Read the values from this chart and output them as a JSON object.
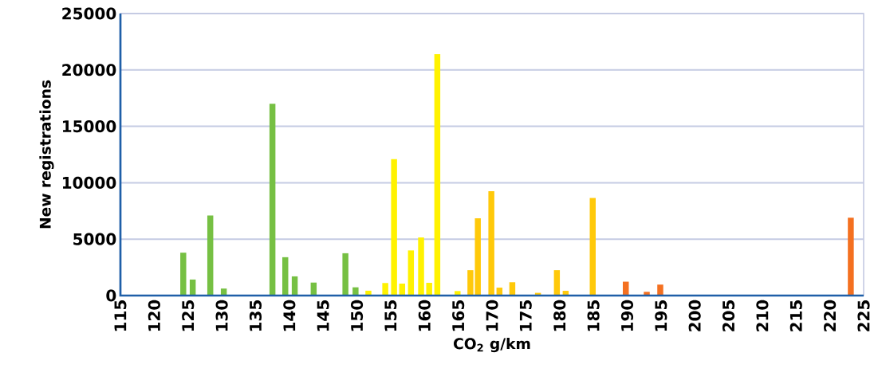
{
  "chart_data": {
    "type": "bar",
    "xlabel": "CO$_{2}$ g/km",
    "ylabel": "New registrations",
    "x": [
      124.3,
      125.7,
      128.3,
      130.3,
      137.5,
      139.4,
      140.8,
      143.6,
      148.3,
      149.8,
      151.7,
      154.2,
      155.5,
      156.7,
      158.0,
      159.5,
      160.7,
      161.9,
      164.9,
      166.8,
      167.9,
      169.9,
      171.1,
      173.0,
      176.8,
      179.6,
      180.9,
      184.9,
      189.8,
      192.9,
      194.9,
      223.1
    ],
    "values": [
      3800,
      1420,
      7100,
      620,
      17000,
      3400,
      1700,
      1150,
      3750,
      730,
      430,
      1110,
      12100,
      1060,
      4000,
      5150,
      1130,
      21400,
      400,
      2250,
      6850,
      9250,
      700,
      1180,
      240,
      2250,
      420,
      8650,
      1230,
      330,
      970,
      6900
    ],
    "colors": [
      "#76c043",
      "#76c043",
      "#76c043",
      "#76c043",
      "#76c043",
      "#76c043",
      "#76c043",
      "#76c043",
      "#76c043",
      "#76c043",
      "#fff200",
      "#fff200",
      "#fff200",
      "#fff200",
      "#fff200",
      "#fff200",
      "#fff200",
      "#fff200",
      "#fff200",
      "#ffc90a",
      "#ffc90a",
      "#ffc90a",
      "#ffc90a",
      "#ffc90a",
      "#ffc90a",
      "#ffc90a",
      "#ffc90a",
      "#ffc90a",
      "#f47020",
      "#f47020",
      "#f47020",
      "#f47020"
    ],
    "xlim": [
      115,
      225
    ],
    "ylim": [
      0,
      25000
    ],
    "xticks": [
      115,
      120,
      125,
      130,
      135,
      140,
      145,
      150,
      155,
      160,
      165,
      170,
      175,
      180,
      185,
      190,
      195,
      200,
      205,
      210,
      215,
      220,
      225
    ],
    "yticks": [
      0,
      5000,
      10000,
      15000,
      20000,
      25000
    ],
    "grid": "y"
  }
}
